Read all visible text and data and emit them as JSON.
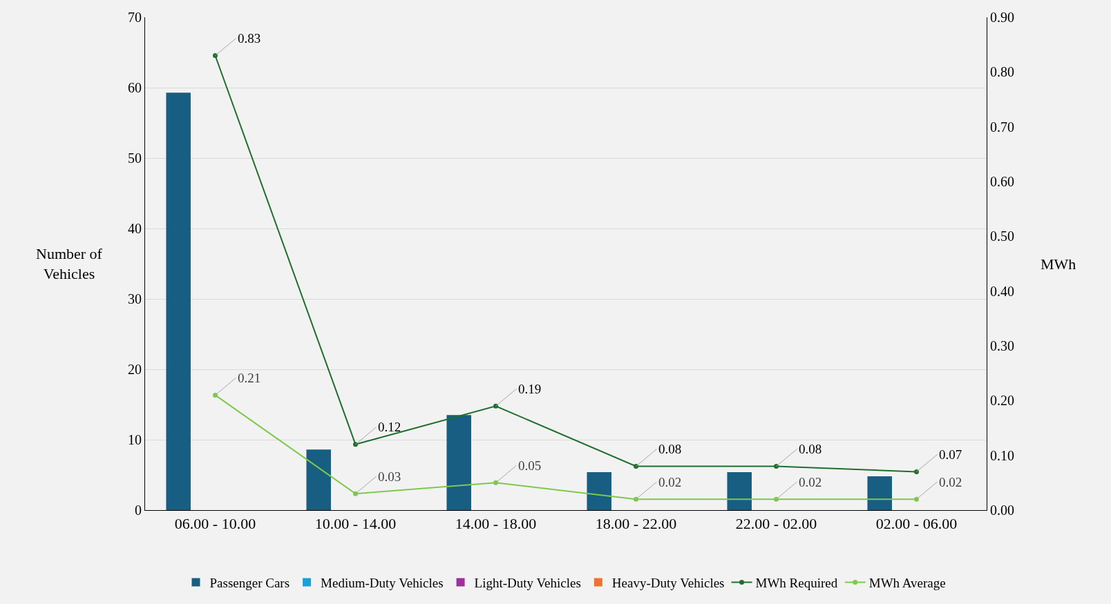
{
  "chart_data": {
    "type": "bar",
    "ylabel": "Number of Vehicles",
    "y2label": "MWh",
    "categories": [
      "06.00 - 10.00",
      "10.00 - 14.00",
      "14.00 - 18.00",
      "18.00 - 22.00",
      "22.00 - 02.00",
      "02.00 - 06.00"
    ],
    "series": [
      {
        "name": "Passenger Cars",
        "color": "#175e82",
        "values": [
          59.3,
          8.6,
          13.5,
          5.4,
          5.4,
          4.8
        ]
      },
      {
        "name": "Medium-Duty Vehicles",
        "color": "#1aa0d8",
        "values": [
          0,
          0,
          0,
          0,
          0,
          0
        ]
      },
      {
        "name": "Light-Duty Vehicles",
        "color": "#a0309a",
        "values": [
          0,
          0,
          0,
          0,
          0,
          0
        ]
      },
      {
        "name": "Heavy-Duty Vehicles",
        "color": "#ee7330",
        "values": [
          0,
          0,
          0,
          0,
          0,
          0
        ]
      },
      {
        "name": "MWh Required",
        "type": "line",
        "axis": "y2",
        "color": "#1e6e2e",
        "values": [
          0.83,
          0.12,
          0.19,
          0.08,
          0.08,
          0.07
        ],
        "value_labels": [
          "0.83",
          "0.12",
          "0.19",
          "0.08",
          "0.08",
          "0.07"
        ]
      },
      {
        "name": "MWh Average",
        "type": "line",
        "axis": "y2",
        "color": "#7ec94a",
        "values": [
          0.21,
          0.03,
          0.05,
          0.02,
          0.02,
          0.02
        ],
        "value_labels": [
          "0.21",
          "0.03",
          "0.05",
          "0.02",
          "0.02",
          "0.02"
        ]
      }
    ],
    "ylim": [
      0,
      70
    ],
    "yticks": [
      0,
      10,
      20,
      30,
      40,
      50,
      60,
      70
    ],
    "y2lim": [
      0,
      0.9
    ],
    "y2ticks": [
      {
        "value": 0,
        "label": "0.00"
      },
      {
        "value": 0.1,
        "label": "0.10"
      },
      {
        "value": 0.2,
        "label": "0.20"
      },
      {
        "value": 0.3,
        "label": "0.30"
      },
      {
        "value": 0.4,
        "label": "0.40"
      },
      {
        "value": 0.5,
        "label": "0.50"
      },
      {
        "value": 0.6,
        "label": "0.60"
      },
      {
        "value": 0.7,
        "label": "0.70"
      },
      {
        "value": 0.8,
        "label": "0.80"
      },
      {
        "value": 0.9,
        "label": "0.90"
      }
    ],
    "grid": "y",
    "legend": "bottom",
    "marker": "circle"
  }
}
